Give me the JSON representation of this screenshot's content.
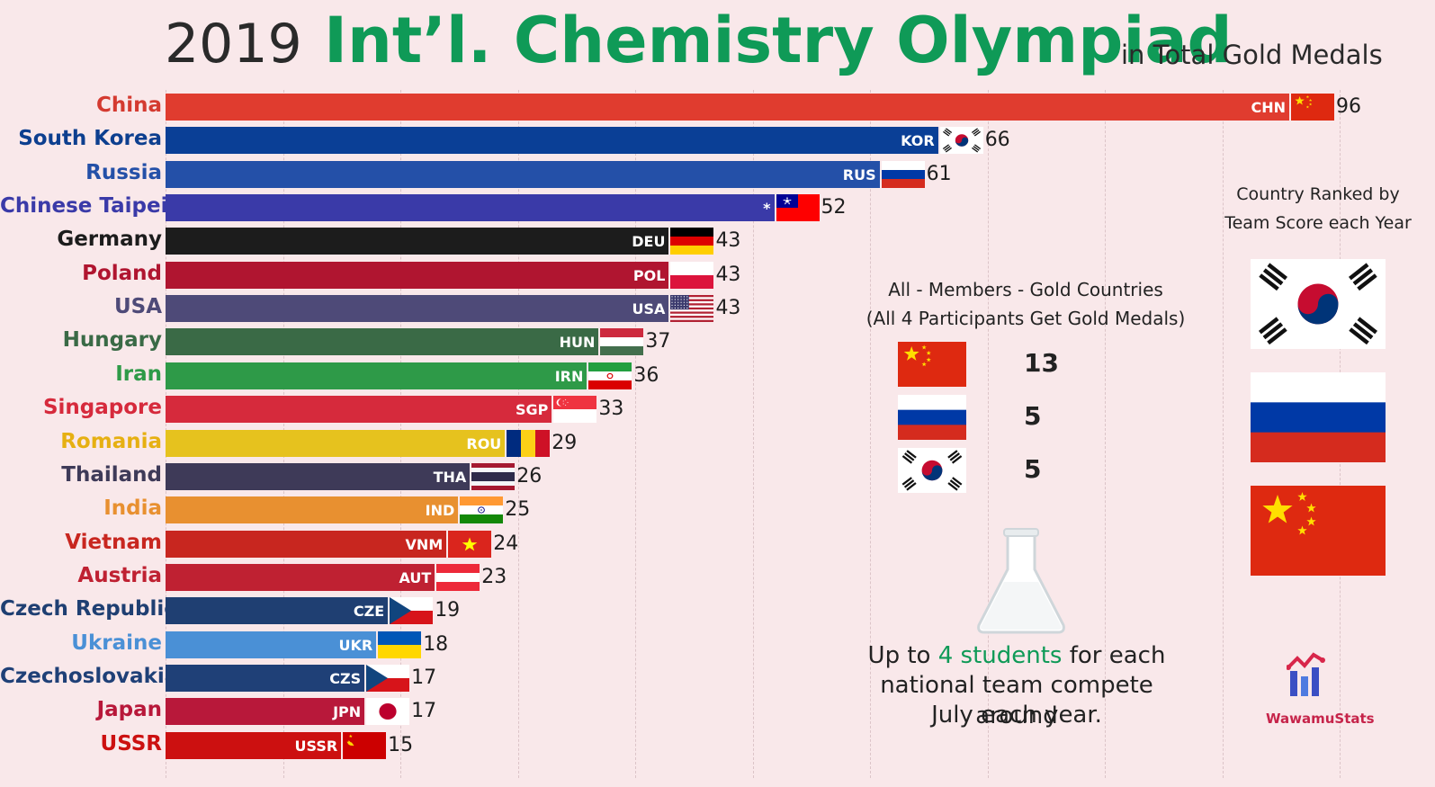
{
  "header": {
    "year": "2019",
    "title": "Int’l. Chemistry Olympiad",
    "subtitle": "in Total Gold Medals"
  },
  "chart_data": {
    "type": "bar",
    "orientation": "horizontal",
    "title": "Int’l. Chemistry Olympiad",
    "subtitle": "in Total Gold Medals",
    "year": "2019",
    "grid": true,
    "categories": [
      "China",
      "South Korea",
      "Russia",
      "Chinese Taipei",
      "Germany",
      "Poland",
      "USA",
      "Hungary",
      "Iran",
      "Singapore",
      "Romania",
      "Thailand",
      "India",
      "Vietnam",
      "Austria",
      "Czech Republic",
      "Ukraine",
      "Czechoslovakia",
      "Japan",
      "USSR"
    ],
    "codes": [
      "CHN",
      "KOR",
      "RUS",
      "*",
      "DEU",
      "POL",
      "USA",
      "HUN",
      "IRN",
      "SGP",
      "ROU",
      "THA",
      "IND",
      "VNM",
      "AUT",
      "CZE",
      "UKR",
      "CZS",
      "JPN",
      "USSR"
    ],
    "values": [
      96,
      66,
      61,
      52,
      43,
      43,
      43,
      37,
      36,
      33,
      29,
      26,
      25,
      24,
      23,
      19,
      18,
      17,
      17,
      15
    ],
    "bar_colors": [
      "#e03c2f",
      "#0a3f96",
      "#2450a8",
      "#3a3aa8",
      "#1c1c1c",
      "#b01530",
      "#4e4a78",
      "#3a6a46",
      "#2e9a48",
      "#d62a3c",
      "#e6c21e",
      "#3e3a58",
      "#e89030",
      "#c8261f",
      "#bf2132",
      "#1f3f72",
      "#4a90d6",
      "#1f4077",
      "#b8183a",
      "#cc1010"
    ],
    "label_colors": [
      "#d43a30",
      "#0d3f8f",
      "#2450a8",
      "#3a3aa8",
      "#1c1c1c",
      "#b01530",
      "#4e4a78",
      "#3a6a46",
      "#2e9a48",
      "#d62a3c",
      "#e6b012",
      "#3e3a58",
      "#e89030",
      "#c8261f",
      "#bf2132",
      "#1f3f72",
      "#4a90d6",
      "#1f4077",
      "#b8183a",
      "#cc1010"
    ],
    "flag_icons": [
      "cn-flag",
      "kr-flag",
      "ru-flag",
      "tw-flag",
      "de-flag",
      "pl-flag",
      "us-flag",
      "hu-flag",
      "ir-flag",
      "sg-flag",
      "ro-flag",
      "th-flag",
      "in-flag",
      "vn-flag",
      "at-flag",
      "cz-flag",
      "ua-flag",
      "cz-flag",
      "jp-flag",
      "su-flag"
    ]
  },
  "legend": {
    "title_line1": "All - Members - Gold Countries",
    "title_line2": "(All 4 Participants Get Gold Medals)",
    "rows": [
      {
        "flag": "cn-flag",
        "value": "13"
      },
      {
        "flag": "ru-flag",
        "value": "5"
      },
      {
        "flag": "kr-flag",
        "value": "5"
      }
    ]
  },
  "ranked": {
    "line1": "Country Ranked by",
    "line2": "Team Score each Year",
    "flags": [
      "kr-flag",
      "ru-flag",
      "cn-flag"
    ]
  },
  "note": {
    "pre": "Up to ",
    "highlight": "4 students",
    "post": " for each",
    "line2": "national team compete around",
    "line3": "July each year."
  },
  "brand": "WawamuStats",
  "colors": {
    "accent": "#0f9a57",
    "background": "#f9e8ea"
  }
}
